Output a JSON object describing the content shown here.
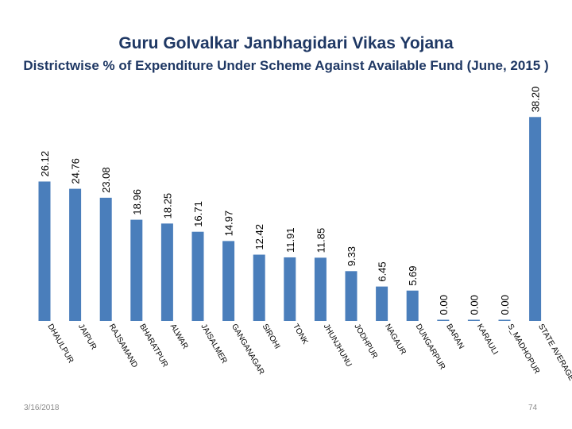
{
  "chart_data": {
    "type": "bar",
    "title": "Guru Golvalkar Janbhagidari Vikas Yojana",
    "subtitle": "Districtwise % of Expenditure Under Scheme Against  Available Fund (June, 2015 )",
    "xlabel": "",
    "ylabel": "",
    "ylim": [
      0,
      40
    ],
    "grid": false,
    "bar_color": "#4a7ebb",
    "categories": [
      "DHAULPUR",
      "JAIPUR",
      "RAJSAMAND",
      "BHARATPUR",
      "ALWAR",
      "JAISALMER",
      "GANGANAGAR",
      "SIROHI",
      "TONK",
      "JHUNJHUNU",
      "JODHPUR",
      "NAGAUR",
      "DUNGARPUR",
      "BARAN",
      "KARAULI",
      "S_MADHOPUR",
      "STATE AVERAGE"
    ],
    "values": [
      26.12,
      24.76,
      23.08,
      18.96,
      18.25,
      16.71,
      14.97,
      12.42,
      11.91,
      11.85,
      9.33,
      6.45,
      5.69,
      0.0,
      0.0,
      0.0,
      38.2
    ],
    "labels": [
      "26.12",
      "24.76",
      "23.08",
      "18.96",
      "18.25",
      "16.71",
      "14.97",
      "12.42",
      "11.91",
      "11.85",
      "9.33",
      "6.45",
      "5.69",
      "0.00",
      "0.00",
      "0.00",
      "38.20"
    ]
  },
  "footer": {
    "date": "3/16/2018",
    "page_number": "74"
  }
}
